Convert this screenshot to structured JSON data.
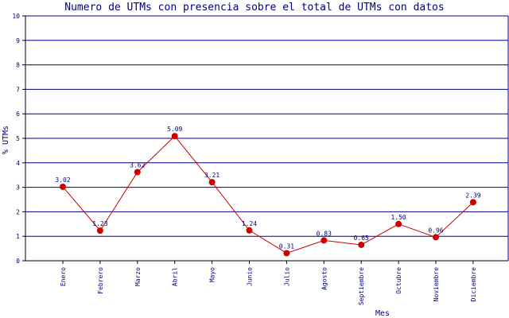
{
  "chart_data": {
    "type": "line",
    "title": "Numero de UTMs con presencia sobre el total de UTMs con datos",
    "xlabel": "Mes",
    "ylabel": "% UTMs",
    "ylim": [
      0,
      10
    ],
    "yticks": [
      0,
      1,
      2,
      3,
      4,
      5,
      6,
      7,
      8,
      9,
      10
    ],
    "grid": true,
    "categories": [
      "Enero",
      "Febrero",
      "Marzo",
      "Abril",
      "Mayo",
      "Junio",
      "Julio",
      "Agosto",
      "Septiembre",
      "Octubre",
      "Noviembre",
      "Diciembre"
    ],
    "values": [
      3.02,
      1.23,
      3.62,
      5.09,
      3.21,
      1.24,
      0.31,
      0.83,
      0.65,
      1.5,
      0.96,
      2.39
    ],
    "data_labels": [
      "3.02",
      "1.23",
      "3.62",
      "5.09",
      "3.21",
      "1.24",
      "0.31",
      "0.83",
      "0.65",
      "1.50",
      "0.96",
      "2.39"
    ],
    "colors": {
      "line": "#cc0000",
      "marker": "#cc0000",
      "grid": "#000080",
      "text": "#000080",
      "axis": "#000000"
    }
  }
}
